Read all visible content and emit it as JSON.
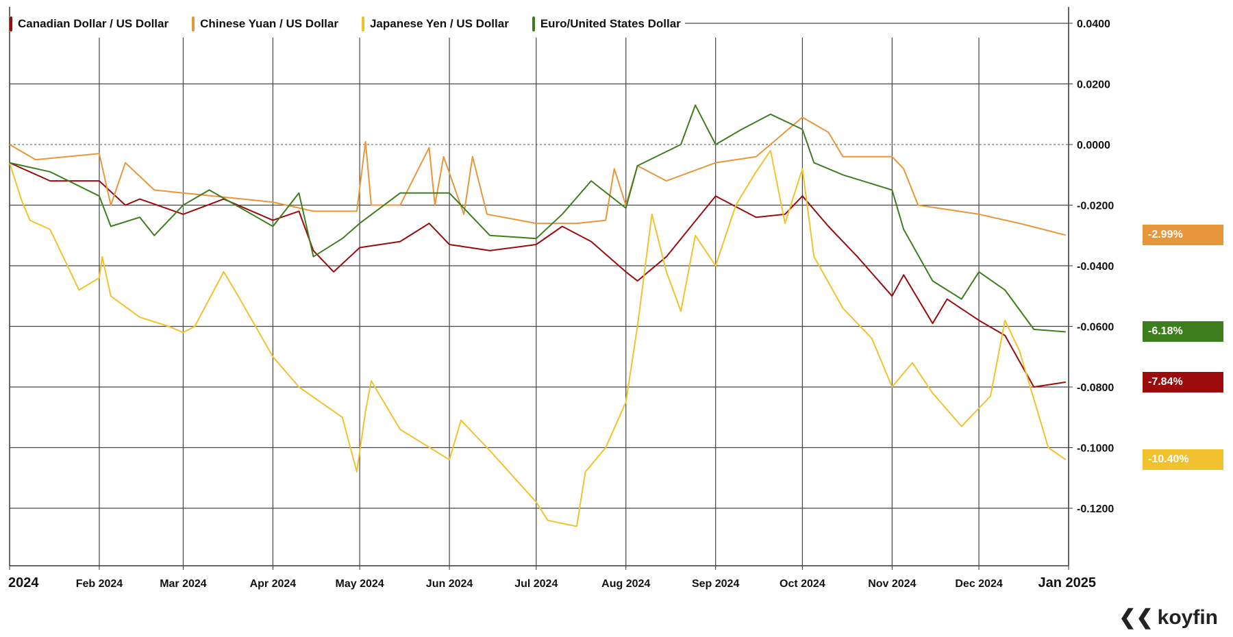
{
  "chart_data": {
    "type": "line",
    "title": "",
    "xlabel": "",
    "ylabel": "",
    "ylim": [
      -0.135,
      0.0445
    ],
    "xlim_days": [
      0,
      366
    ],
    "y_ticks": [
      "0.0400",
      "0.0200",
      "0.0000",
      "-0.0200",
      "-0.0400",
      "-0.0600",
      "-0.0800",
      "-0.1000",
      "-0.1200"
    ],
    "y_tick_values": [
      0.04,
      0.02,
      0,
      -0.02,
      -0.04,
      -0.06,
      -0.08,
      -0.1,
      -0.12
    ],
    "x_ticks": [
      {
        "label": "2024",
        "day": 0
      },
      {
        "label": "Feb 2024",
        "day": 31
      },
      {
        "label": "Mar 2024",
        "day": 60
      },
      {
        "label": "Apr 2024",
        "day": 91
      },
      {
        "label": "May 2024",
        "day": 121
      },
      {
        "label": "Jun 2024",
        "day": 152
      },
      {
        "label": "Jul 2024",
        "day": 182
      },
      {
        "label": "Aug 2024",
        "day": 213
      },
      {
        "label": "Sep 2024",
        "day": 244
      },
      {
        "label": "Oct 2024",
        "day": 274
      },
      {
        "label": "Nov 2024",
        "day": 305
      },
      {
        "label": "Dec 2024",
        "day": 335
      },
      {
        "label": "Jan 2025",
        "day": 366
      }
    ],
    "legend_position": "top-left",
    "grid": true,
    "series": [
      {
        "name": "Canadian Dollar / US Dollar",
        "color": "#9b0b0b",
        "last_label": "-7.84%",
        "x": [
          0,
          14,
          31,
          40,
          45,
          60,
          74,
          91,
          100,
          105,
          112,
          121,
          135,
          145,
          152,
          166,
          182,
          191,
          201,
          213,
          217,
          227,
          244,
          258,
          268,
          274,
          283,
          293,
          305,
          309,
          319,
          324,
          335,
          344,
          354,
          365
        ],
        "y": [
          -0.006,
          -0.012,
          -0.012,
          -0.02,
          -0.018,
          -0.023,
          -0.018,
          -0.025,
          -0.022,
          -0.035,
          -0.042,
          -0.034,
          -0.032,
          -0.026,
          -0.033,
          -0.035,
          -0.033,
          -0.027,
          -0.032,
          -0.042,
          -0.045,
          -0.037,
          -0.017,
          -0.024,
          -0.023,
          -0.017,
          -0.027,
          -0.037,
          -0.05,
          -0.043,
          -0.059,
          -0.051,
          -0.058,
          -0.063,
          -0.08,
          -0.0784
        ]
      },
      {
        "name": "Chinese Yuan / US Dollar",
        "color": "#e8963c",
        "last_label": "-2.99%",
        "x": [
          0,
          9,
          31,
          35,
          40,
          50,
          60,
          91,
          105,
          120,
          123,
          125,
          135,
          145,
          147,
          150,
          157,
          160,
          165,
          182,
          196,
          206,
          209,
          213,
          217,
          227,
          244,
          258,
          274,
          283,
          288,
          305,
          309,
          314,
          335,
          349,
          365
        ],
        "y": [
          0.0,
          -0.005,
          -0.003,
          -0.02,
          -0.006,
          -0.015,
          -0.016,
          -0.019,
          -0.022,
          -0.022,
          0.001,
          -0.02,
          -0.02,
          -0.001,
          -0.02,
          -0.004,
          -0.023,
          -0.004,
          -0.023,
          -0.026,
          -0.026,
          -0.025,
          -0.008,
          -0.02,
          -0.007,
          -0.012,
          -0.006,
          -0.004,
          0.009,
          0.004,
          -0.004,
          -0.004,
          -0.008,
          -0.02,
          -0.023,
          -0.026,
          -0.0299
        ]
      },
      {
        "name": "Japanese Yen / US Dollar",
        "color": "#f2c12e",
        "last_label": "-10.40%",
        "x": [
          0,
          4,
          7,
          14,
          24,
          31,
          32,
          35,
          45,
          55,
          60,
          64,
          74,
          79,
          91,
          100,
          115,
          120,
          123,
          125,
          135,
          152,
          156,
          166,
          182,
          186,
          196,
          199,
          206,
          213,
          217,
          222,
          227,
          232,
          237,
          244,
          251,
          258,
          263,
          268,
          274,
          278,
          288,
          298,
          305,
          312,
          319,
          329,
          339,
          344,
          349,
          359,
          365
        ],
        "y": [
          -0.006,
          -0.018,
          -0.025,
          -0.028,
          -0.048,
          -0.044,
          -0.037,
          -0.05,
          -0.057,
          -0.06,
          -0.062,
          -0.06,
          -0.042,
          -0.05,
          -0.07,
          -0.08,
          -0.09,
          -0.108,
          -0.088,
          -0.078,
          -0.094,
          -0.104,
          -0.091,
          -0.101,
          -0.118,
          -0.124,
          -0.126,
          -0.108,
          -0.1,
          -0.085,
          -0.06,
          -0.023,
          -0.042,
          -0.055,
          -0.03,
          -0.04,
          -0.02,
          -0.009,
          -0.002,
          -0.026,
          -0.008,
          -0.037,
          -0.054,
          -0.064,
          -0.08,
          -0.072,
          -0.082,
          -0.093,
          -0.083,
          -0.058,
          -0.068,
          -0.1,
          -0.104
        ]
      },
      {
        "name": "Euro/United States Dollar",
        "color": "#3e7d1e",
        "last_label": "-6.18%",
        "x": [
          0,
          14,
          31,
          35,
          45,
          50,
          60,
          69,
          91,
          100,
          105,
          115,
          121,
          135,
          152,
          166,
          182,
          191,
          201,
          213,
          217,
          232,
          237,
          244,
          253,
          263,
          274,
          278,
          288,
          305,
          309,
          319,
          329,
          335,
          344,
          354,
          365
        ],
        "y": [
          -0.006,
          -0.009,
          -0.017,
          -0.027,
          -0.024,
          -0.03,
          -0.02,
          -0.015,
          -0.027,
          -0.016,
          -0.037,
          -0.031,
          -0.026,
          -0.016,
          -0.016,
          -0.03,
          -0.031,
          -0.023,
          -0.012,
          -0.021,
          -0.007,
          0.0,
          0.013,
          0.0,
          0.005,
          0.01,
          0.005,
          -0.006,
          -0.01,
          -0.015,
          -0.028,
          -0.045,
          -0.051,
          -0.042,
          -0.048,
          -0.061,
          -0.0618
        ]
      }
    ]
  },
  "branding": {
    "logo_text": "koyfin"
  }
}
